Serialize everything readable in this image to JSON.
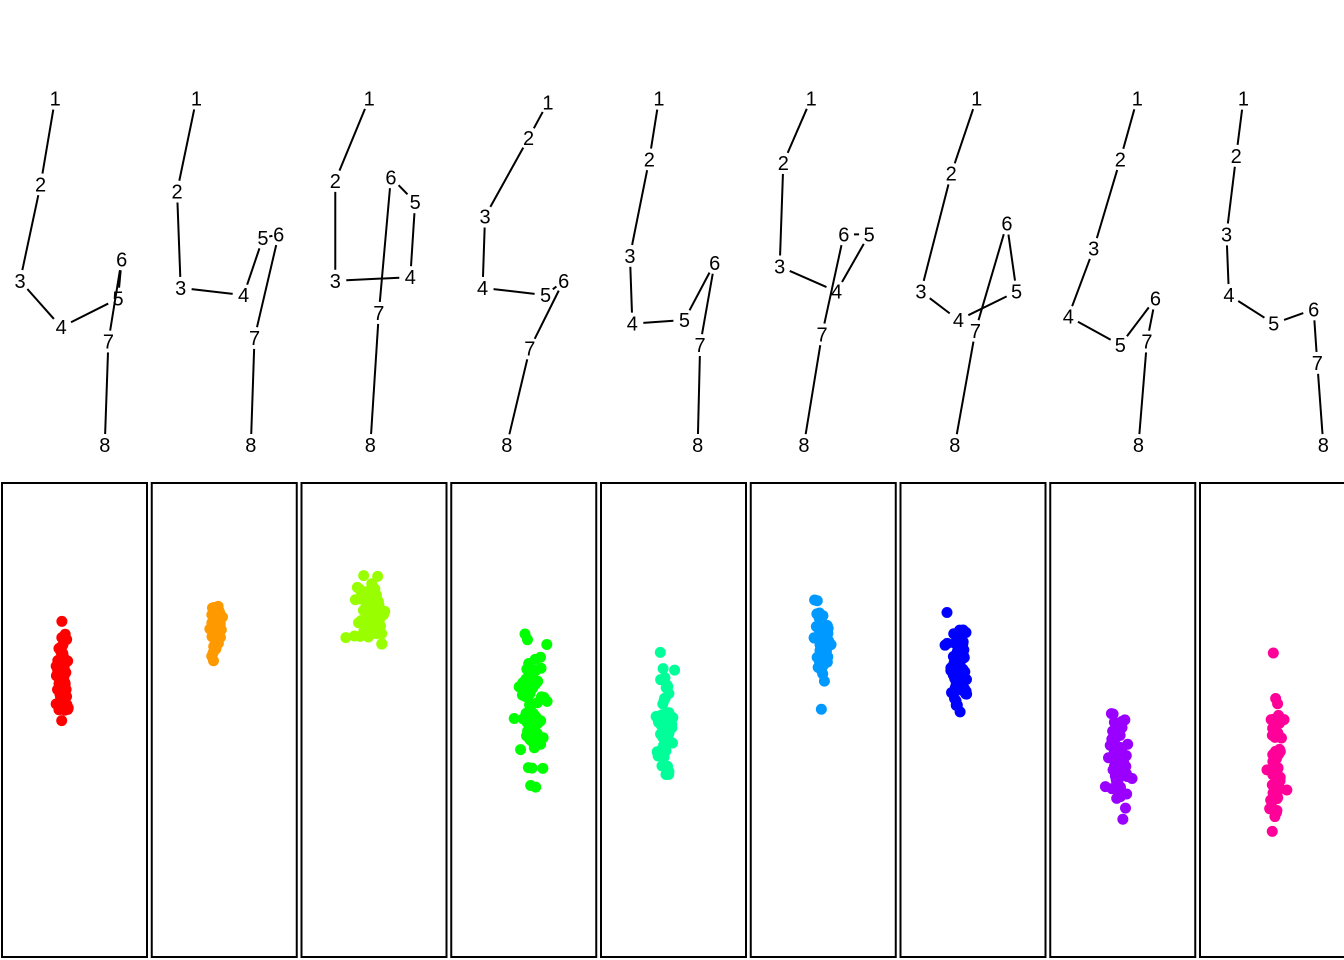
{
  "chart_data": {
    "type": "scatter",
    "title": "",
    "description_source": "nine digit-4 stroke traces (points 1-8) above nine scatter clusters",
    "traces": [
      {
        "points": [
          [
            0.34,
            0.97
          ],
          [
            0.22,
            0.73
          ],
          [
            0.05,
            0.46
          ],
          [
            0.39,
            0.33
          ],
          [
            0.86,
            0.41
          ],
          [
            0.89,
            0.52
          ],
          [
            0.78,
            0.29
          ],
          [
            0.75,
            0.0
          ]
        ]
      },
      {
        "points": [
          [
            0.27,
            0.97
          ],
          [
            0.11,
            0.71
          ],
          [
            0.14,
            0.44
          ],
          [
            0.66,
            0.42
          ],
          [
            0.82,
            0.58
          ],
          [
            0.95,
            0.59
          ],
          [
            0.75,
            0.3
          ],
          [
            0.72,
            0.0
          ]
        ]
      },
      {
        "points": [
          [
            0.46,
            0.97
          ],
          [
            0.18,
            0.74
          ],
          [
            0.18,
            0.46
          ],
          [
            0.8,
            0.47
          ],
          [
            0.84,
            0.68
          ],
          [
            0.64,
            0.75
          ],
          [
            0.54,
            0.37
          ],
          [
            0.47,
            0.0
          ]
        ]
      },
      {
        "points": [
          [
            0.7,
            0.96
          ],
          [
            0.54,
            0.86
          ],
          [
            0.18,
            0.64
          ],
          [
            0.16,
            0.44
          ],
          [
            0.68,
            0.42
          ],
          [
            0.83,
            0.46
          ],
          [
            0.55,
            0.27
          ],
          [
            0.36,
            0.0
          ]
        ]
      },
      {
        "points": [
          [
            0.38,
            0.97
          ],
          [
            0.3,
            0.8
          ],
          [
            0.14,
            0.53
          ],
          [
            0.16,
            0.34
          ],
          [
            0.59,
            0.35
          ],
          [
            0.84,
            0.51
          ],
          [
            0.72,
            0.28
          ],
          [
            0.7,
            0.0
          ]
        ]
      },
      {
        "points": [
          [
            0.4,
            0.97
          ],
          [
            0.17,
            0.79
          ],
          [
            0.14,
            0.5
          ],
          [
            0.61,
            0.43
          ],
          [
            0.88,
            0.59
          ],
          [
            0.67,
            0.59
          ],
          [
            0.49,
            0.31
          ],
          [
            0.34,
            0.0
          ]
        ]
      },
      {
        "points": [
          [
            0.53,
            0.97
          ],
          [
            0.32,
            0.76
          ],
          [
            0.07,
            0.43
          ],
          [
            0.38,
            0.35
          ],
          [
            0.86,
            0.43
          ],
          [
            0.78,
            0.62
          ],
          [
            0.52,
            0.32
          ],
          [
            0.35,
            0.0
          ]
        ]
      },
      {
        "points": [
          [
            0.62,
            0.97
          ],
          [
            0.48,
            0.8
          ],
          [
            0.26,
            0.55
          ],
          [
            0.05,
            0.36
          ],
          [
            0.48,
            0.28
          ],
          [
            0.77,
            0.41
          ],
          [
            0.7,
            0.29
          ],
          [
            0.63,
            0.0
          ]
        ]
      },
      {
        "points": [
          [
            0.26,
            0.97
          ],
          [
            0.2,
            0.81
          ],
          [
            0.12,
            0.59
          ],
          [
            0.14,
            0.42
          ],
          [
            0.51,
            0.34
          ],
          [
            0.84,
            0.38
          ],
          [
            0.87,
            0.23
          ],
          [
            0.92,
            0.0
          ]
        ]
      }
    ],
    "point_labels": [
      "1",
      "2",
      "3",
      "4",
      "5",
      "6",
      "7",
      "8"
    ],
    "panels": [
      {
        "color": "#FF0000",
        "cx": 0.42,
        "cy": 0.41,
        "sx": 0.045,
        "sy": 0.045,
        "n": 60
      },
      {
        "color": "#FF9900",
        "cx": 0.44,
        "cy": 0.3,
        "sx": 0.045,
        "sy": 0.03,
        "n": 45
      },
      {
        "color": "#99FF00",
        "cx": 0.48,
        "cy": 0.28,
        "sx": 0.1,
        "sy": 0.04,
        "n": 80
      },
      {
        "color": "#00FF00",
        "cx": 0.55,
        "cy": 0.48,
        "sx": 0.08,
        "sy": 0.07,
        "n": 70
      },
      {
        "color": "#00FF99",
        "cx": 0.44,
        "cy": 0.51,
        "sx": 0.06,
        "sy": 0.045,
        "n": 60
      },
      {
        "color": "#0099FF",
        "cx": 0.5,
        "cy": 0.33,
        "sx": 0.06,
        "sy": 0.045,
        "n": 60
      },
      {
        "color": "#0000FF",
        "cx": 0.4,
        "cy": 0.38,
        "sx": 0.07,
        "sy": 0.042,
        "n": 70
      },
      {
        "color": "#9900FF",
        "cx": 0.48,
        "cy": 0.59,
        "sx": 0.07,
        "sy": 0.05,
        "n": 65
      },
      {
        "color": "#FF0099",
        "cx": 0.52,
        "cy": 0.6,
        "sx": 0.05,
        "sy": 0.06,
        "n": 55
      }
    ]
  }
}
